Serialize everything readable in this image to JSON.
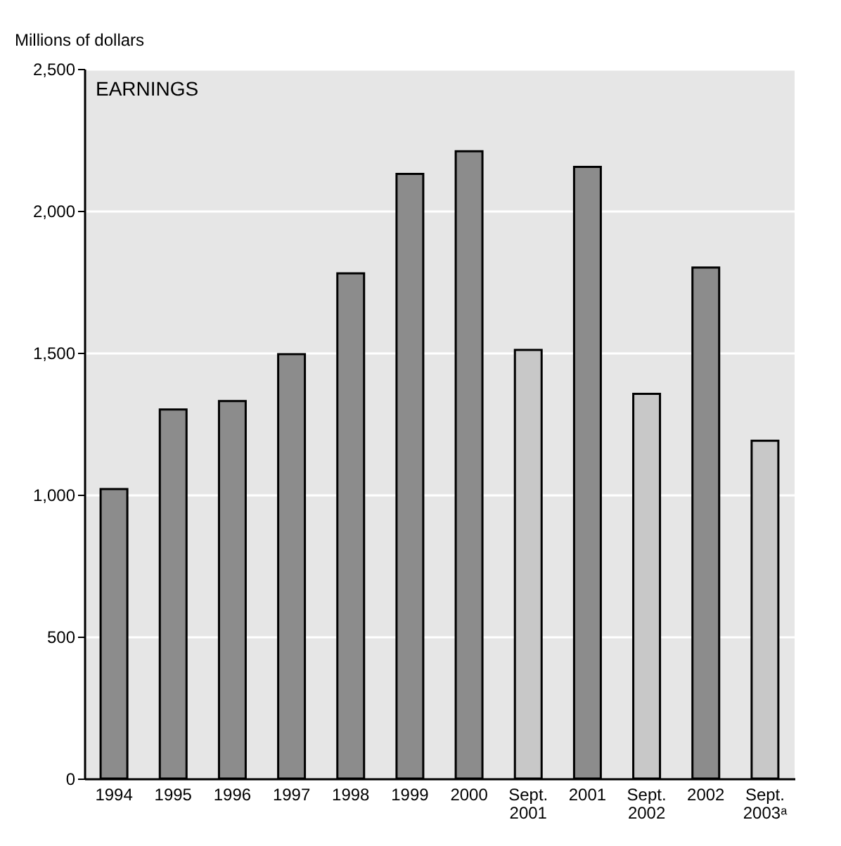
{
  "chart_data": {
    "type": "bar",
    "ylabel": "Millions of dollars",
    "annotations": [
      "EARNINGS"
    ],
    "categories": [
      "1994",
      "1995",
      "1996",
      "1997",
      "1998",
      "1999",
      "2000",
      "Sept. 2001",
      "2001",
      "Sept. 2002",
      "2002",
      "Sept. 2003ᵃ"
    ],
    "values": [
      1020,
      1300,
      1330,
      1495,
      1780,
      2130,
      2210,
      1510,
      2155,
      1355,
      1800,
      1190
    ],
    "colors": [
      "#8c8c8c",
      "#8c8c8c",
      "#8c8c8c",
      "#8c8c8c",
      "#8c8c8c",
      "#8c8c8c",
      "#8c8c8c",
      "#c8c8c8",
      "#8c8c8c",
      "#c8c8c8",
      "#8c8c8c",
      "#c8c8c8"
    ],
    "ylim": [
      0,
      2500
    ],
    "yticks": [
      0,
      500,
      {
        "value": 1000,
        "label": "1,000"
      },
      {
        "value": 1500,
        "label": "1,500"
      },
      {
        "value": 2000,
        "label": "2,000"
      },
      {
        "value": 2500,
        "label": "2,500"
      }
    ],
    "grid": "y"
  }
}
